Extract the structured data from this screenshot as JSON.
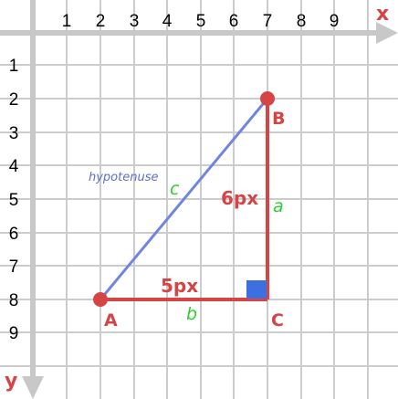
{
  "axes": {
    "x_label": "x",
    "y_label": "y",
    "x_ticks": [
      "1",
      "2",
      "3",
      "4",
      "5",
      "6",
      "7",
      "8",
      "9"
    ],
    "y_ticks": [
      "1",
      "2",
      "3",
      "4",
      "5",
      "6",
      "7",
      "8",
      "9"
    ]
  },
  "points": {
    "A": {
      "label": "A",
      "x": 2,
      "y": 8
    },
    "B": {
      "label": "B",
      "x": 7,
      "y": 2
    },
    "C": {
      "label": "C",
      "x": 7,
      "y": 8
    }
  },
  "sides": {
    "horizontal": {
      "measure": "5px",
      "letter": "b"
    },
    "vertical": {
      "measure": "6px",
      "letter": "a"
    },
    "hypotenuse": {
      "letter": "c",
      "name": "hypotenuse"
    }
  },
  "colors": {
    "grid": "#cccccc",
    "axis": "#c8c8c8",
    "triangle": "#d64545",
    "hypotenuse": "#6f86e0",
    "right_angle": "#3c6fe0",
    "side_letter": "#2bcf2b",
    "axis_letter": "#d64545"
  }
}
